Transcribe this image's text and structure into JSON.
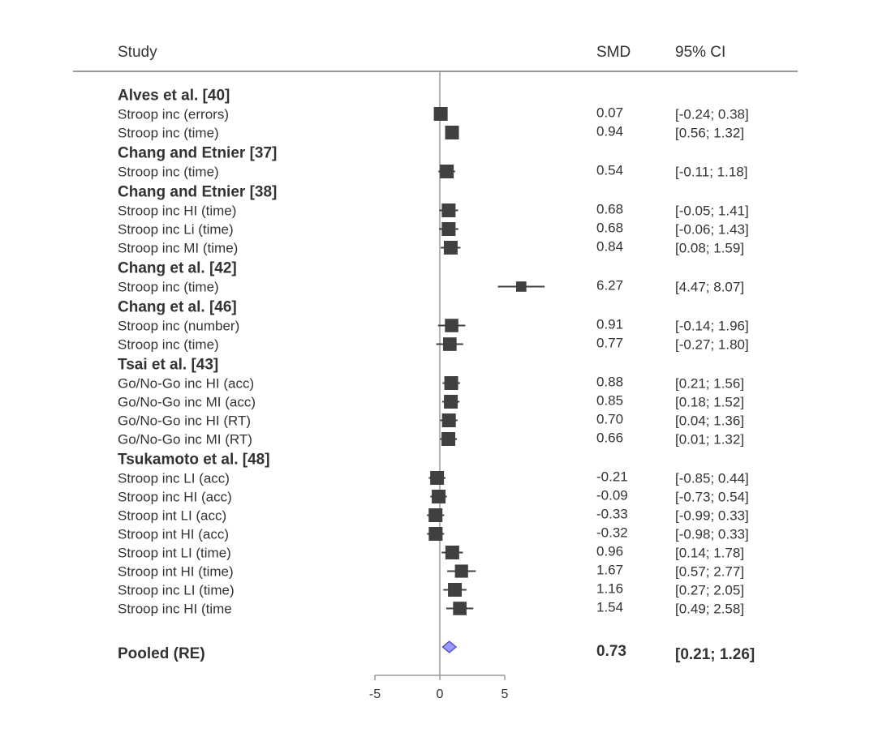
{
  "chart_data": {
    "type": "forest",
    "headers": {
      "study": "Study",
      "smd": "SMD",
      "ci": "95% CI"
    },
    "x_ticks": [
      -5,
      0,
      5
    ],
    "xlim": [
      -5,
      5
    ],
    "null_value": 0,
    "colors": {
      "text": "#333333",
      "marker": "#404040",
      "axis": "#999999",
      "pooled_fill": "#9999ff",
      "pooled_stroke": "#4444cc"
    },
    "rows": [
      {
        "kind": "group",
        "label": "Alves et al. [40]"
      },
      {
        "kind": "study",
        "label": "Stroop inc (errors)",
        "smd": "0.07",
        "ci": "[-0.24; 0.38]",
        "est": 0.07,
        "lo": -0.24,
        "hi": 0.38
      },
      {
        "kind": "study",
        "label": "Stroop inc (time)",
        "smd": "0.94",
        "ci": "[0.56; 1.32]",
        "est": 0.94,
        "lo": 0.56,
        "hi": 1.32
      },
      {
        "kind": "group",
        "label": "Chang and Etnier [37]"
      },
      {
        "kind": "study",
        "label": "Stroop inc (time)",
        "smd": "0.54",
        "ci": "[-0.11; 1.18]",
        "est": 0.54,
        "lo": -0.11,
        "hi": 1.18
      },
      {
        "kind": "group",
        "label": "Chang and Etnier [38]"
      },
      {
        "kind": "study",
        "label": "Stroop inc HI (time)",
        "smd": "0.68",
        "ci": "[-0.05; 1.41]",
        "est": 0.68,
        "lo": -0.05,
        "hi": 1.41
      },
      {
        "kind": "study",
        "label": "Stroop inc Li (time)",
        "smd": "0.68",
        "ci": "[-0.06; 1.43]",
        "est": 0.68,
        "lo": -0.06,
        "hi": 1.43
      },
      {
        "kind": "study",
        "label": "Stroop inc MI (time)",
        "smd": "0.84",
        "ci": "[0.08; 1.59]",
        "est": 0.84,
        "lo": 0.08,
        "hi": 1.59
      },
      {
        "kind": "group",
        "label": "Chang et al. [42]"
      },
      {
        "kind": "study",
        "label": "Stroop inc (time)",
        "smd": "6.27",
        "ci": "[4.47; 8.07]",
        "est": 6.27,
        "lo": 4.47,
        "hi": 8.07
      },
      {
        "kind": "group",
        "label": "Chang et al. [46]"
      },
      {
        "kind": "study",
        "label": "Stroop inc (number)",
        "smd": "0.91",
        "ci": "[-0.14; 1.96]",
        "est": 0.91,
        "lo": -0.14,
        "hi": 1.96
      },
      {
        "kind": "study",
        "label": "Stroop inc (time)",
        "smd": "0.77",
        "ci": "[-0.27; 1.80]",
        "est": 0.77,
        "lo": -0.27,
        "hi": 1.8
      },
      {
        "kind": "group",
        "label": "Tsai et al. [43]"
      },
      {
        "kind": "study",
        "label": "Go/No-Go inc HI (acc)",
        "smd": "0.88",
        "ci": "[0.21; 1.56]",
        "est": 0.88,
        "lo": 0.21,
        "hi": 1.56
      },
      {
        "kind": "study",
        "label": "Go/No-Go inc MI (acc)",
        "smd": "0.85",
        "ci": "[0.18; 1.52]",
        "est": 0.85,
        "lo": 0.18,
        "hi": 1.52
      },
      {
        "kind": "study",
        "label": "Go/No-Go inc HI (RT)",
        "smd": "0.70",
        "ci": "[0.04; 1.36]",
        "est": 0.7,
        "lo": 0.04,
        "hi": 1.36
      },
      {
        "kind": "study",
        "label": "Go/No-Go inc MI (RT)",
        "smd": "0.66",
        "ci": "[0.01; 1.32]",
        "est": 0.66,
        "lo": 0.01,
        "hi": 1.32
      },
      {
        "kind": "group",
        "label": "Tsukamoto et al. [48]"
      },
      {
        "kind": "study",
        "label": "Stroop inc LI (acc)",
        "smd": "-0.21",
        "ci": "[-0.85; 0.44]",
        "est": -0.21,
        "lo": -0.85,
        "hi": 0.44
      },
      {
        "kind": "study",
        "label": "Stroop inc HI (acc)",
        "smd": "-0.09",
        "ci": "[-0.73; 0.54]",
        "est": -0.09,
        "lo": -0.73,
        "hi": 0.54
      },
      {
        "kind": "study",
        "label": "Stroop int LI (acc)",
        "smd": "-0.33",
        "ci": "[-0.99; 0.33]",
        "est": -0.33,
        "lo": -0.99,
        "hi": 0.33
      },
      {
        "kind": "study",
        "label": "Stroop int HI (acc)",
        "smd": "-0.32",
        "ci": "[-0.98; 0.33]",
        "est": -0.32,
        "lo": -0.98,
        "hi": 0.33
      },
      {
        "kind": "study",
        "label": "Stroop int LI (time)",
        "smd": "0.96",
        "ci": "[0.14; 1.78]",
        "est": 0.96,
        "lo": 0.14,
        "hi": 1.78
      },
      {
        "kind": "study",
        "label": "Stroop int HI (time)",
        "smd": "1.67",
        "ci": "[0.57; 2.77]",
        "est": 1.67,
        "lo": 0.57,
        "hi": 2.77
      },
      {
        "kind": "study",
        "label": "Stroop inc LI (time)",
        "smd": "1.16",
        "ci": "[0.27; 2.05]",
        "est": 1.16,
        "lo": 0.27,
        "hi": 2.05
      },
      {
        "kind": "study",
        "label": "Stroop inc HI (time",
        "smd": "1.54",
        "ci": "[0.49; 2.58]",
        "est": 1.54,
        "lo": 0.49,
        "hi": 2.58
      }
    ],
    "pooled": {
      "label": "Pooled (RE)",
      "smd": "0.73",
      "ci": "[0.21; 1.26]",
      "est": 0.73,
      "lo": 0.21,
      "hi": 1.26
    }
  }
}
